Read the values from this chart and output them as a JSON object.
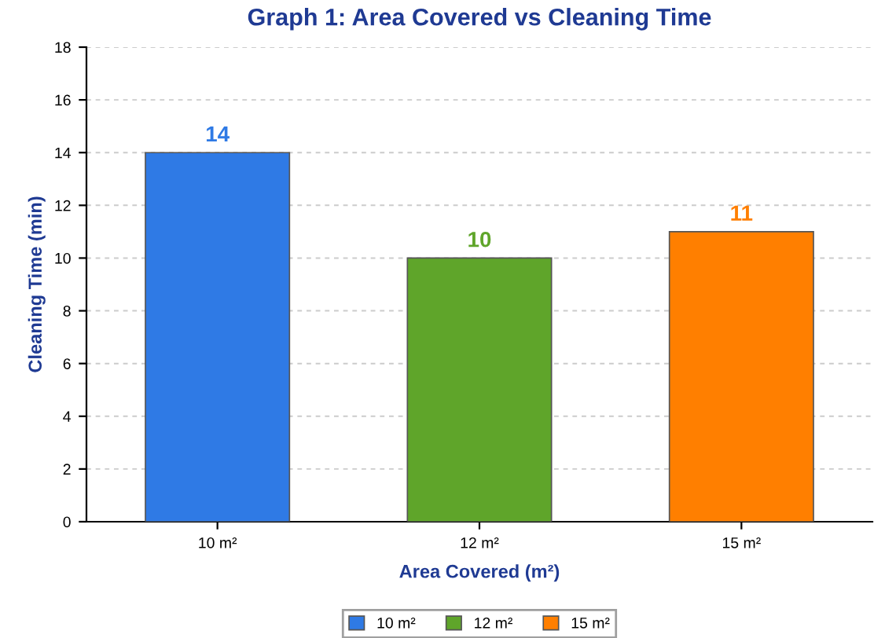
{
  "chart_data": {
    "type": "bar",
    "title": "Graph 1: Area Covered vs Cleaning Time",
    "xlabel": "Area Covered (m²)",
    "ylabel": "Cleaning Time (min)",
    "categories": [
      "10 m²",
      "12 m²",
      "15 m²"
    ],
    "stacked": true,
    "series": [
      {
        "name": "10 m²",
        "color": "#2f7ae5",
        "values": [
          14,
          null,
          null
        ]
      },
      {
        "name": "12 m²",
        "color": "#5fa52a",
        "values": [
          null,
          10,
          null
        ]
      },
      {
        "name": "15 m²",
        "color": "#ff7f00",
        "values": [
          null,
          null,
          11
        ]
      }
    ],
    "ylim": [
      0,
      18
    ],
    "yticks": [
      0,
      2,
      4,
      6,
      8,
      10,
      12,
      14,
      16,
      18
    ],
    "grid": "y",
    "data_labels": true,
    "legend": "bottom"
  }
}
